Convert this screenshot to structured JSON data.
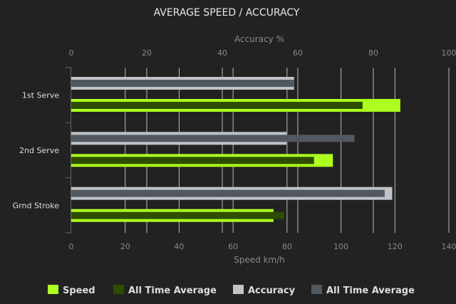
{
  "chart_data": {
    "type": "bar",
    "orientation": "horizontal",
    "title": "AVERAGE SPEED / ACCURACY",
    "categories": [
      "1st Serve",
      "2nd Serve",
      "Grnd Stroke"
    ],
    "x_bottom": {
      "label": "Speed km/h",
      "range": [
        0,
        140
      ],
      "ticks": [
        0,
        20,
        40,
        60,
        80,
        100,
        120,
        140
      ]
    },
    "x_top": {
      "label": "Accuracy %",
      "range": [
        0,
        100
      ],
      "ticks": [
        0,
        20,
        40,
        60,
        80,
        100
      ]
    },
    "grid": true,
    "legend_position": "bottom",
    "series": [
      {
        "name": "Speed",
        "axis": "bottom",
        "color": "#adff1f",
        "values": [
          122,
          97,
          75
        ]
      },
      {
        "name": "All Time Average",
        "axis": "bottom",
        "color": "#2d4d00",
        "values": [
          108,
          90,
          79
        ]
      },
      {
        "name": "Accuracy",
        "axis": "top",
        "color": "#c0c4c8",
        "values": [
          59,
          57,
          85
        ]
      },
      {
        "name": "All Time Average",
        "axis": "top",
        "color": "#525860",
        "values": [
          59,
          75,
          83
        ]
      }
    ]
  }
}
